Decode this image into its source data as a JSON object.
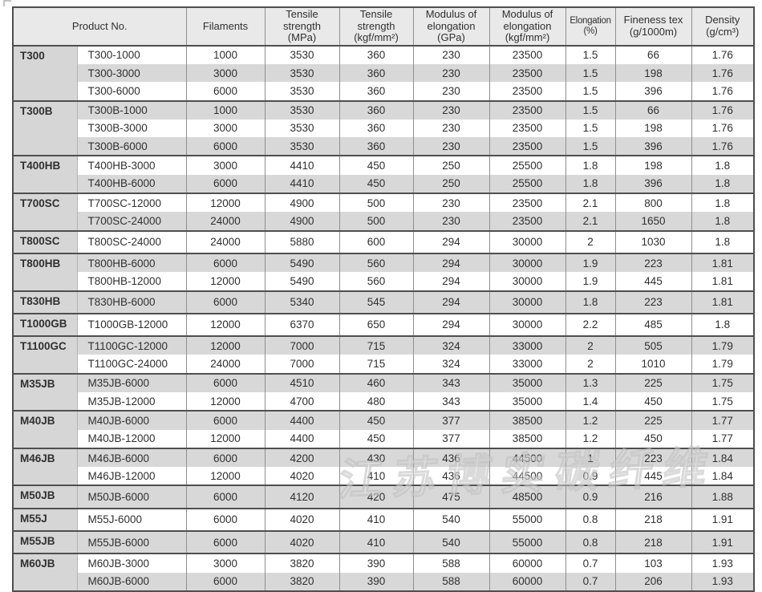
{
  "colors": {
    "header_bg": "#e9e9e9",
    "stripe_bg": "#d8d8d8",
    "group_bg": "#d6d6d6",
    "border_dark": "#4f4f4f",
    "border_mid": "#8f8f8f",
    "border_light": "#b5b5b5",
    "text": "#303030"
  },
  "watermark": {
    "text": "江苏博实碳纤维"
  },
  "table": {
    "columns": [
      {
        "key": "product-no",
        "label": "Product No.",
        "colspan": 2
      },
      {
        "key": "filaments",
        "label": "Filaments"
      },
      {
        "key": "tensile-strength-mpa",
        "label": "Tensile\nstrength\n(MPa)"
      },
      {
        "key": "tensile-strength-kgf",
        "label": "Tensile\nstrength\n(kgf/mm²)"
      },
      {
        "key": "modulus-elongation-gpa",
        "label": "Modulus of\nelongation\n(GPa)"
      },
      {
        "key": "modulus-elongation-kgf",
        "label": "Modulus of\nelongation\n(kgf/mm²)"
      },
      {
        "key": "elongation-pct",
        "label": "Elongation\n(%)",
        "small": true
      },
      {
        "key": "fineness-tex",
        "label": "Fineness tex\n(g/1000m)"
      },
      {
        "key": "density",
        "label": "Density\n(g/cm³)"
      }
    ],
    "cell_keys": [
      "product-no",
      "filaments",
      "tensile-strength-mpa",
      "tensile-strength-kgf",
      "modulus-elongation-gpa",
      "modulus-elongation-kgf",
      "elongation-pct",
      "fineness-tex",
      "density"
    ],
    "groups": [
      {
        "name": "T300",
        "rows": [
          [
            "T300-1000",
            "1000",
            "3530",
            "360",
            "230",
            "23500",
            "1.5",
            "66",
            "1.76"
          ],
          [
            "T300-3000",
            "3000",
            "3530",
            "360",
            "230",
            "23500",
            "1.5",
            "198",
            "1.76"
          ],
          [
            "T300-6000",
            "6000",
            "3530",
            "360",
            "230",
            "23500",
            "1.5",
            "396",
            "1.76"
          ]
        ]
      },
      {
        "name": "T300B",
        "rows": [
          [
            "T300B-1000",
            "1000",
            "3530",
            "360",
            "230",
            "23500",
            "1.5",
            "66",
            "1.76"
          ],
          [
            "T300B-3000",
            "3000",
            "3530",
            "360",
            "230",
            "23500",
            "1.5",
            "198",
            "1.76"
          ],
          [
            "T300B-6000",
            "6000",
            "3530",
            "360",
            "230",
            "23500",
            "1.5",
            "396",
            "1.76"
          ]
        ]
      },
      {
        "name": "T400HB",
        "rows": [
          [
            "T400HB-3000",
            "3000",
            "4410",
            "450",
            "250",
            "25500",
            "1.8",
            "198",
            "1.8"
          ],
          [
            "T400HB-6000",
            "6000",
            "4410",
            "450",
            "250",
            "25500",
            "1.8",
            "396",
            "1.8"
          ]
        ]
      },
      {
        "name": "T700SC",
        "rows": [
          [
            "T700SC-12000",
            "12000",
            "4900",
            "500",
            "230",
            "23500",
            "2.1",
            "800",
            "1.8"
          ],
          [
            "T700SC-24000",
            "24000",
            "4900",
            "500",
            "230",
            "23500",
            "2.1",
            "1650",
            "1.8"
          ]
        ]
      },
      {
        "name": "T800SC",
        "rows": [
          [
            "T800SC-24000",
            "24000",
            "5880",
            "600",
            "294",
            "30000",
            "2",
            "1030",
            "1.8"
          ]
        ]
      },
      {
        "name": "T800HB",
        "rows": [
          [
            "T800HB-6000",
            "6000",
            "5490",
            "560",
            "294",
            "30000",
            "1.9",
            "223",
            "1.81"
          ],
          [
            "T800HB-12000",
            "12000",
            "5490",
            "560",
            "294",
            "30000",
            "1.9",
            "445",
            "1.81"
          ]
        ]
      },
      {
        "name": "T830HB",
        "rows": [
          [
            "T830HB-6000",
            "6000",
            "5340",
            "545",
            "294",
            "30000",
            "1.8",
            "223",
            "1.81"
          ]
        ]
      },
      {
        "name": "T1000GB",
        "rows": [
          [
            "T1000GB-12000",
            "12000",
            "6370",
            "650",
            "294",
            "30000",
            "2.2",
            "485",
            "1.8"
          ]
        ]
      },
      {
        "name": "T1100GC",
        "rows": [
          [
            "T1100GC-12000",
            "12000",
            "7000",
            "715",
            "324",
            "33000",
            "2",
            "505",
            "1.79"
          ],
          [
            "T1100GC-24000",
            "24000",
            "7000",
            "715",
            "324",
            "33000",
            "2",
            "1010",
            "1.79"
          ]
        ]
      },
      {
        "name": "M35JB",
        "rows": [
          [
            "M35JB-6000",
            "6000",
            "4510",
            "460",
            "343",
            "35000",
            "1.3",
            "225",
            "1.75"
          ],
          [
            "M35JB-12000",
            "12000",
            "4700",
            "480",
            "343",
            "35000",
            "1.4",
            "450",
            "1.75"
          ]
        ]
      },
      {
        "name": "M40JB",
        "rows": [
          [
            "M40JB-6000",
            "6000",
            "4400",
            "450",
            "377",
            "38500",
            "1.2",
            "225",
            "1.77"
          ],
          [
            "M40JB-12000",
            "12000",
            "4400",
            "450",
            "377",
            "38500",
            "1.2",
            "450",
            "1.77"
          ]
        ]
      },
      {
        "name": "M46JB",
        "rows": [
          [
            "M46JB-6000",
            "6000",
            "4200",
            "430",
            "436",
            "44500",
            "1",
            "223",
            "1.84"
          ],
          [
            "M46JB-12000",
            "12000",
            "4020",
            "410",
            "436",
            "44500",
            "0.9",
            "445",
            "1.84"
          ]
        ]
      },
      {
        "name": "M50JB",
        "rows": [
          [
            "M50JB-6000",
            "6000",
            "4120",
            "420",
            "475",
            "48500",
            "0.9",
            "216",
            "1.88"
          ]
        ]
      },
      {
        "name": "M55J",
        "rows": [
          [
            "M55J-6000",
            "6000",
            "4020",
            "410",
            "540",
            "55000",
            "0.8",
            "218",
            "1.91"
          ]
        ]
      },
      {
        "name": "M55JB",
        "rows": [
          [
            "M55JB-6000",
            "6000",
            "4020",
            "410",
            "540",
            "55000",
            "0.8",
            "218",
            "1.91"
          ]
        ]
      },
      {
        "name": "M60JB",
        "rows": [
          [
            "M60JB-3000",
            "3000",
            "3820",
            "390",
            "588",
            "60000",
            "0.7",
            "103",
            "1.93"
          ],
          [
            "M60JB-6000",
            "6000",
            "3820",
            "390",
            "588",
            "60000",
            "0.7",
            "206",
            "1.93"
          ]
        ]
      }
    ]
  }
}
